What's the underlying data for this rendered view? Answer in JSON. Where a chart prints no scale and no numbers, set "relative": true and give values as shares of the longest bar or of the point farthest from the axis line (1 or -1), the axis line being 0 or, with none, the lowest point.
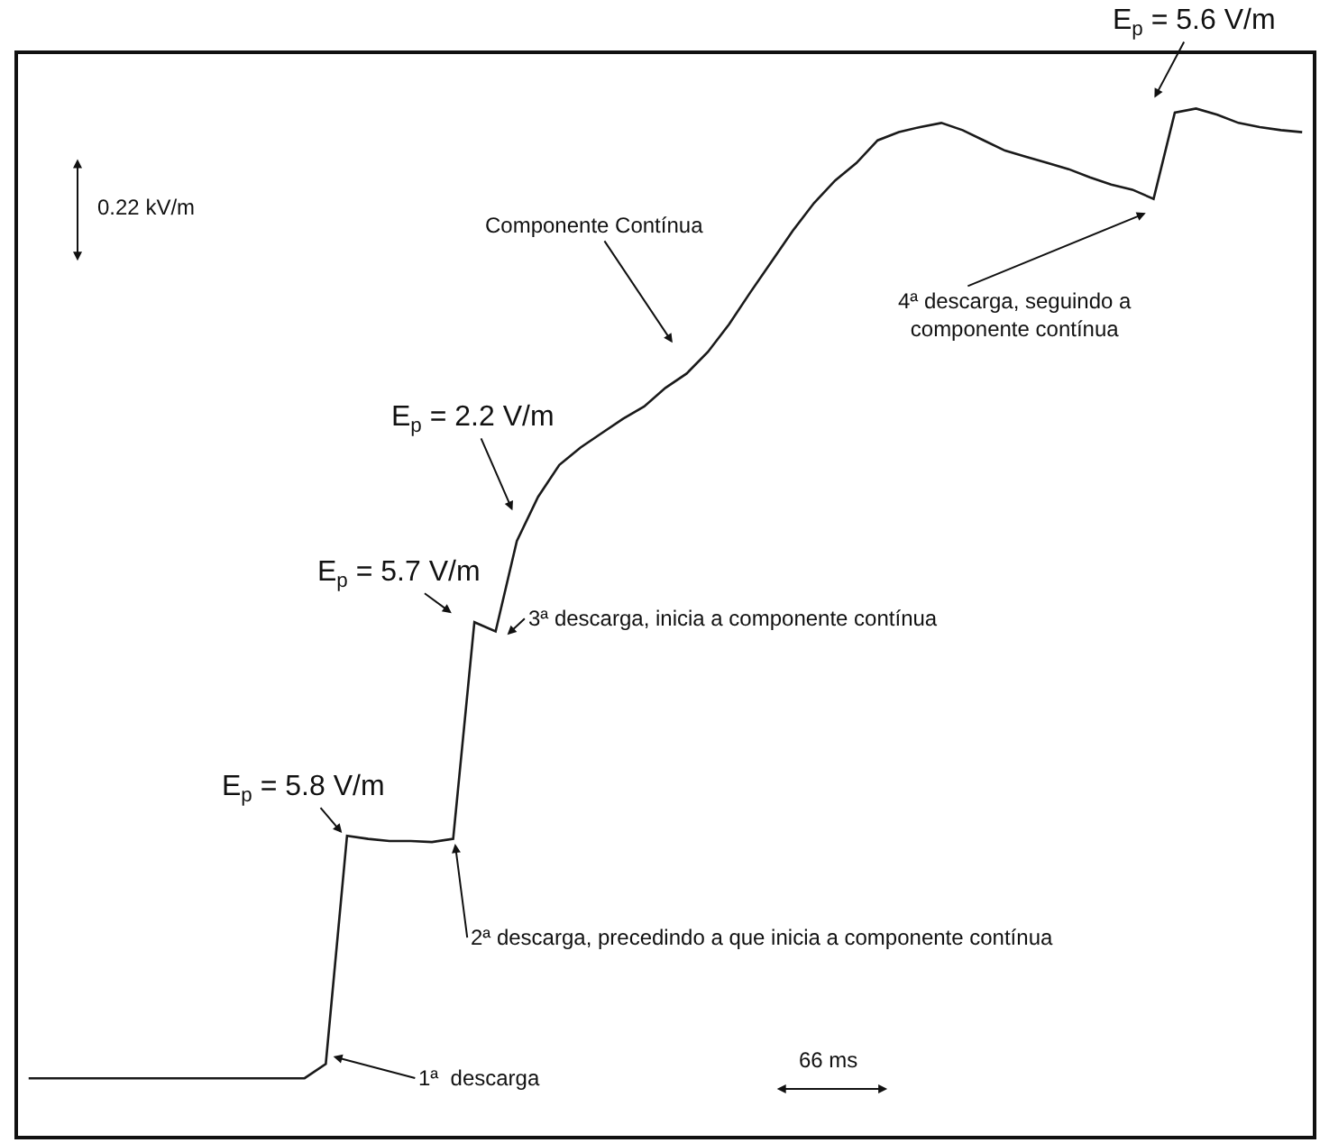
{
  "chart_data": {
    "type": "line",
    "relative": true,
    "legend": false,
    "marker": "none",
    "line_style": "solid",
    "categories": [
      null,
      null,
      null,
      null,
      null,
      null,
      null,
      null,
      null,
      null,
      null,
      null,
      null,
      null,
      null,
      null,
      null,
      null,
      null,
      null,
      null,
      null,
      null,
      null,
      null,
      null,
      null,
      null,
      null,
      null,
      null,
      null,
      null,
      null,
      null,
      null,
      null,
      null,
      null,
      null,
      null,
      null,
      null,
      null,
      null,
      null,
      null,
      null,
      null,
      null,
      null,
      null,
      null,
      null,
      null,
      null,
      null,
      null,
      null,
      null,
      null
    ],
    "series": [
      {
        "color": "#1a1a1a",
        "values": [
          0.056,
          0.056,
          0.056,
          0.056,
          0.056,
          0.056,
          0.056,
          0.056,
          0.056,
          0.056,
          0.056,
          0.056,
          0.056,
          0.056,
          0.07,
          0.292,
          0.289,
          0.287,
          0.287,
          0.286,
          0.289,
          0.5,
          0.491,
          0.579,
          0.622,
          0.653,
          0.67,
          0.684,
          0.698,
          0.71,
          0.728,
          0.742,
          0.763,
          0.79,
          0.821,
          0.851,
          0.881,
          0.908,
          0.93,
          0.947,
          0.969,
          0.977,
          0.982,
          0.986,
          0.979,
          0.969,
          0.959,
          0.953,
          0.947,
          0.941,
          0.933,
          0.926,
          0.921,
          0.912,
          0.996,
          1,
          0.994,
          0.986,
          0.982,
          0.979,
          0.977
        ]
      }
    ],
    "annotations": [
      "Componente Contínua",
      "E$_{p}$ = 2.2 V/m",
      "E$_{p}$ = 5.7 V/m",
      "E$_{p}$ = 5.8 V/m",
      "E$_{p}$ = 5.6 V/m",
      "3ª descarga, inicia a componente contínua",
      "2ª descarga, precedindo a que inicia a componente contínua",
      "1ª  descarga",
      "4ª descarga, seguindo a\ncomponente contínua",
      "0.22 kV/m",
      "66 ms"
    ]
  }
}
